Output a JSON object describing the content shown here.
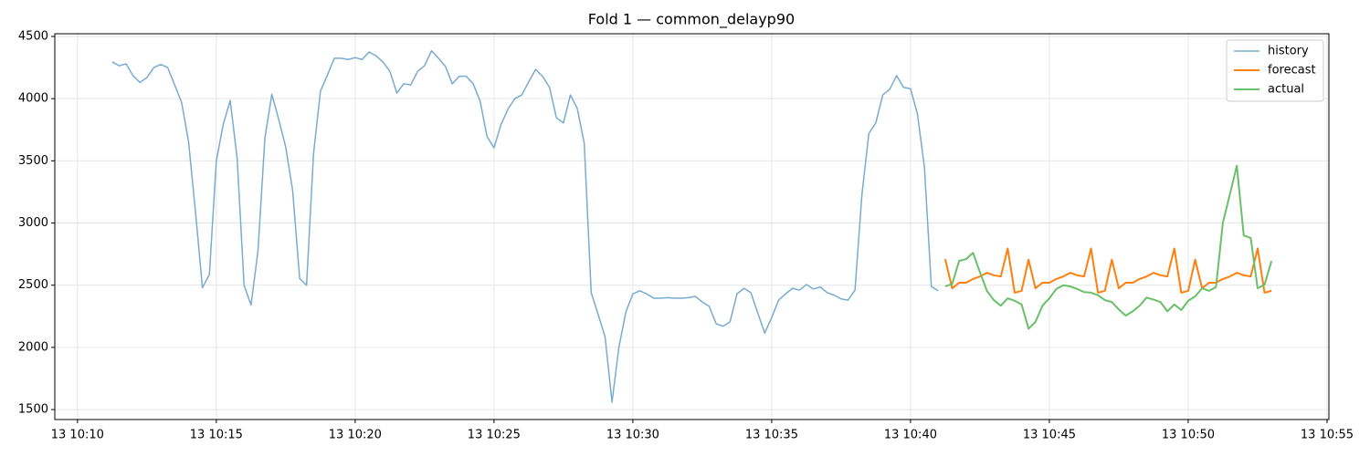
{
  "chart_data": {
    "type": "line",
    "title": "Fold 1 — common_delayp90",
    "grid": true,
    "legend": "upper right",
    "xlim": [
      "13 10:09:11",
      "13 10:55:04"
    ],
    "xticks": [
      "13 10:10",
      "13 10:15",
      "13 10:20",
      "13 10:25",
      "13 10:30",
      "13 10:35",
      "13 10:40",
      "13 10:45",
      "13 10:50",
      "13 10:55"
    ],
    "ylim": [
      1420,
      4522
    ],
    "yticks": [
      1500,
      2000,
      2500,
      3000,
      3500,
      4000,
      4500
    ],
    "series": [
      {
        "name": "history",
        "color": "#78abd0",
        "width": 1.5,
        "x": [
          "13 10:11:15",
          "13 10:11:30",
          "13 10:11:45",
          "13 10:12:00",
          "13 10:12:15",
          "13 10:12:30",
          "13 10:12:45",
          "13 10:13:00",
          "13 10:13:15",
          "13 10:13:30",
          "13 10:13:45",
          "13 10:14:00",
          "13 10:14:15",
          "13 10:14:30",
          "13 10:14:45",
          "13 10:15:00",
          "13 10:15:15",
          "13 10:15:30",
          "13 10:15:45",
          "13 10:16:00",
          "13 10:16:15",
          "13 10:16:30",
          "13 10:16:45",
          "13 10:17:00",
          "13 10:17:15",
          "13 10:17:30",
          "13 10:17:45",
          "13 10:18:00",
          "13 10:18:15",
          "13 10:18:30",
          "13 10:18:45",
          "13 10:19:00",
          "13 10:19:15",
          "13 10:19:30",
          "13 10:19:45",
          "13 10:20:00",
          "13 10:20:15",
          "13 10:20:30",
          "13 10:20:45",
          "13 10:21:00",
          "13 10:21:15",
          "13 10:21:30",
          "13 10:21:45",
          "13 10:22:00",
          "13 10:22:15",
          "13 10:22:30",
          "13 10:22:45",
          "13 10:23:00",
          "13 10:23:15",
          "13 10:23:30",
          "13 10:23:45",
          "13 10:24:00",
          "13 10:24:15",
          "13 10:24:30",
          "13 10:24:45",
          "13 10:25:00",
          "13 10:25:15",
          "13 10:25:30",
          "13 10:25:45",
          "13 10:26:00",
          "13 10:26:15",
          "13 10:26:30",
          "13 10:26:45",
          "13 10:27:00",
          "13 10:27:15",
          "13 10:27:30",
          "13 10:27:45",
          "13 10:28:00",
          "13 10:28:15",
          "13 10:28:30",
          "13 10:28:45",
          "13 10:29:00",
          "13 10:29:15",
          "13 10:29:30",
          "13 10:29:45",
          "13 10:30:00",
          "13 10:30:15",
          "13 10:30:30",
          "13 10:30:45",
          "13 10:31:00",
          "13 10:31:15",
          "13 10:31:30",
          "13 10:31:45",
          "13 10:32:00",
          "13 10:32:15",
          "13 10:32:30",
          "13 10:32:45",
          "13 10:33:00",
          "13 10:33:15",
          "13 10:33:30",
          "13 10:33:45",
          "13 10:34:00",
          "13 10:34:15",
          "13 10:34:30",
          "13 10:34:45",
          "13 10:35:00",
          "13 10:35:15",
          "13 10:35:30",
          "13 10:35:45",
          "13 10:36:00",
          "13 10:36:15",
          "13 10:36:30",
          "13 10:36:45",
          "13 10:37:00",
          "13 10:37:15",
          "13 10:37:30",
          "13 10:37:45",
          "13 10:38:00",
          "13 10:38:15",
          "13 10:38:30",
          "13 10:38:45",
          "13 10:39:00",
          "13 10:39:15",
          "13 10:39:30",
          "13 10:39:45",
          "13 10:40:00",
          "13 10:40:15",
          "13 10:40:30",
          "13 10:40:45",
          "13 10:41:00"
        ],
        "values": [
          4295,
          4265,
          4280,
          4185,
          4130,
          4170,
          4250,
          4275,
          4250,
          4110,
          3970,
          3655,
          3090,
          2480,
          2585,
          3500,
          3795,
          3985,
          3520,
          2500,
          2340,
          2775,
          3685,
          4035,
          3830,
          3610,
          3260,
          2555,
          2500,
          3555,
          4060,
          4190,
          4325,
          4325,
          4315,
          4330,
          4315,
          4375,
          4345,
          4295,
          4220,
          4045,
          4120,
          4110,
          4220,
          4265,
          4385,
          4325,
          4260,
          4120,
          4180,
          4180,
          4120,
          3980,
          3695,
          3605,
          3790,
          3915,
          4000,
          4030,
          4135,
          4235,
          4180,
          4090,
          3845,
          3805,
          4030,
          3920,
          3640,
          2440,
          2265,
          2085,
          1560,
          2005,
          2285,
          2430,
          2455,
          2430,
          2395,
          2395,
          2400,
          2395,
          2395,
          2400,
          2410,
          2365,
          2330,
          2190,
          2170,
          2205,
          2430,
          2475,
          2440,
          2275,
          2115,
          2240,
          2380,
          2430,
          2475,
          2460,
          2505,
          2470,
          2485,
          2440,
          2420,
          2390,
          2380,
          2460,
          3230,
          3720,
          3805,
          4030,
          4075,
          4185,
          4090,
          4080,
          3875,
          3450,
          2490,
          2455
        ]
      },
      {
        "name": "forecast",
        "color": "#ff7f0e",
        "width": 2,
        "x": [
          "13 10:41:15",
          "13 10:41:30",
          "13 10:41:45",
          "13 10:42:00",
          "13 10:42:15",
          "13 10:42:30",
          "13 10:42:45",
          "13 10:43:00",
          "13 10:43:15",
          "13 10:43:30",
          "13 10:43:45",
          "13 10:44:00",
          "13 10:44:15",
          "13 10:44:30",
          "13 10:44:45",
          "13 10:45:00",
          "13 10:45:15",
          "13 10:45:30",
          "13 10:45:45",
          "13 10:46:00",
          "13 10:46:15",
          "13 10:46:30",
          "13 10:46:45",
          "13 10:47:00",
          "13 10:47:15",
          "13 10:47:30",
          "13 10:47:45",
          "13 10:48:00",
          "13 10:48:15",
          "13 10:48:30",
          "13 10:48:45",
          "13 10:49:00",
          "13 10:49:15",
          "13 10:49:30",
          "13 10:49:45",
          "13 10:50:00",
          "13 10:50:15",
          "13 10:50:30",
          "13 10:50:45",
          "13 10:51:00",
          "13 10:51:15",
          "13 10:51:30",
          "13 10:51:45",
          "13 10:52:00",
          "13 10:52:15",
          "13 10:52:30",
          "13 10:52:45",
          "13 10:53:00"
        ],
        "values": [
          2710,
          2475,
          2520,
          2520,
          2550,
          2570,
          2600,
          2580,
          2570,
          2795,
          2440,
          2455,
          2705,
          2475,
          2520,
          2520,
          2550,
          2570,
          2600,
          2580,
          2570,
          2795,
          2440,
          2455,
          2705,
          2475,
          2520,
          2520,
          2550,
          2570,
          2600,
          2580,
          2570,
          2795,
          2440,
          2455,
          2705,
          2475,
          2520,
          2520,
          2550,
          2570,
          2600,
          2580,
          2570,
          2795,
          2440,
          2455
        ]
      },
      {
        "name": "actual",
        "color": "#6abf69",
        "width": 2,
        "x": [
          "13 10:41:15",
          "13 10:41:30",
          "13 10:41:45",
          "13 10:42:00",
          "13 10:42:15",
          "13 10:42:30",
          "13 10:42:45",
          "13 10:43:00",
          "13 10:43:15",
          "13 10:43:30",
          "13 10:43:45",
          "13 10:44:00",
          "13 10:44:15",
          "13 10:44:30",
          "13 10:44:45",
          "13 10:45:00",
          "13 10:45:15",
          "13 10:45:30",
          "13 10:45:45",
          "13 10:46:00",
          "13 10:46:15",
          "13 10:46:30",
          "13 10:46:45",
          "13 10:47:00",
          "13 10:47:15",
          "13 10:47:30",
          "13 10:47:45",
          "13 10:48:00",
          "13 10:48:15",
          "13 10:48:30",
          "13 10:48:45",
          "13 10:49:00",
          "13 10:49:15",
          "13 10:49:30",
          "13 10:49:45",
          "13 10:50:00",
          "13 10:50:15",
          "13 10:50:30",
          "13 10:50:45",
          "13 10:51:00",
          "13 10:51:15",
          "13 10:51:30",
          "13 10:51:45",
          "13 10:52:00",
          "13 10:52:15",
          "13 10:52:30",
          "13 10:52:45",
          "13 10:53:00"
        ],
        "values": [
          2490,
          2510,
          2695,
          2710,
          2760,
          2605,
          2455,
          2380,
          2335,
          2395,
          2375,
          2345,
          2150,
          2205,
          2335,
          2395,
          2470,
          2500,
          2490,
          2470,
          2445,
          2440,
          2420,
          2380,
          2365,
          2305,
          2255,
          2290,
          2335,
          2400,
          2385,
          2365,
          2290,
          2345,
          2300,
          2375,
          2410,
          2475,
          2455,
          2485,
          3005,
          3230,
          3460,
          2900,
          2880,
          2475,
          2505,
          2695
        ]
      }
    ]
  }
}
